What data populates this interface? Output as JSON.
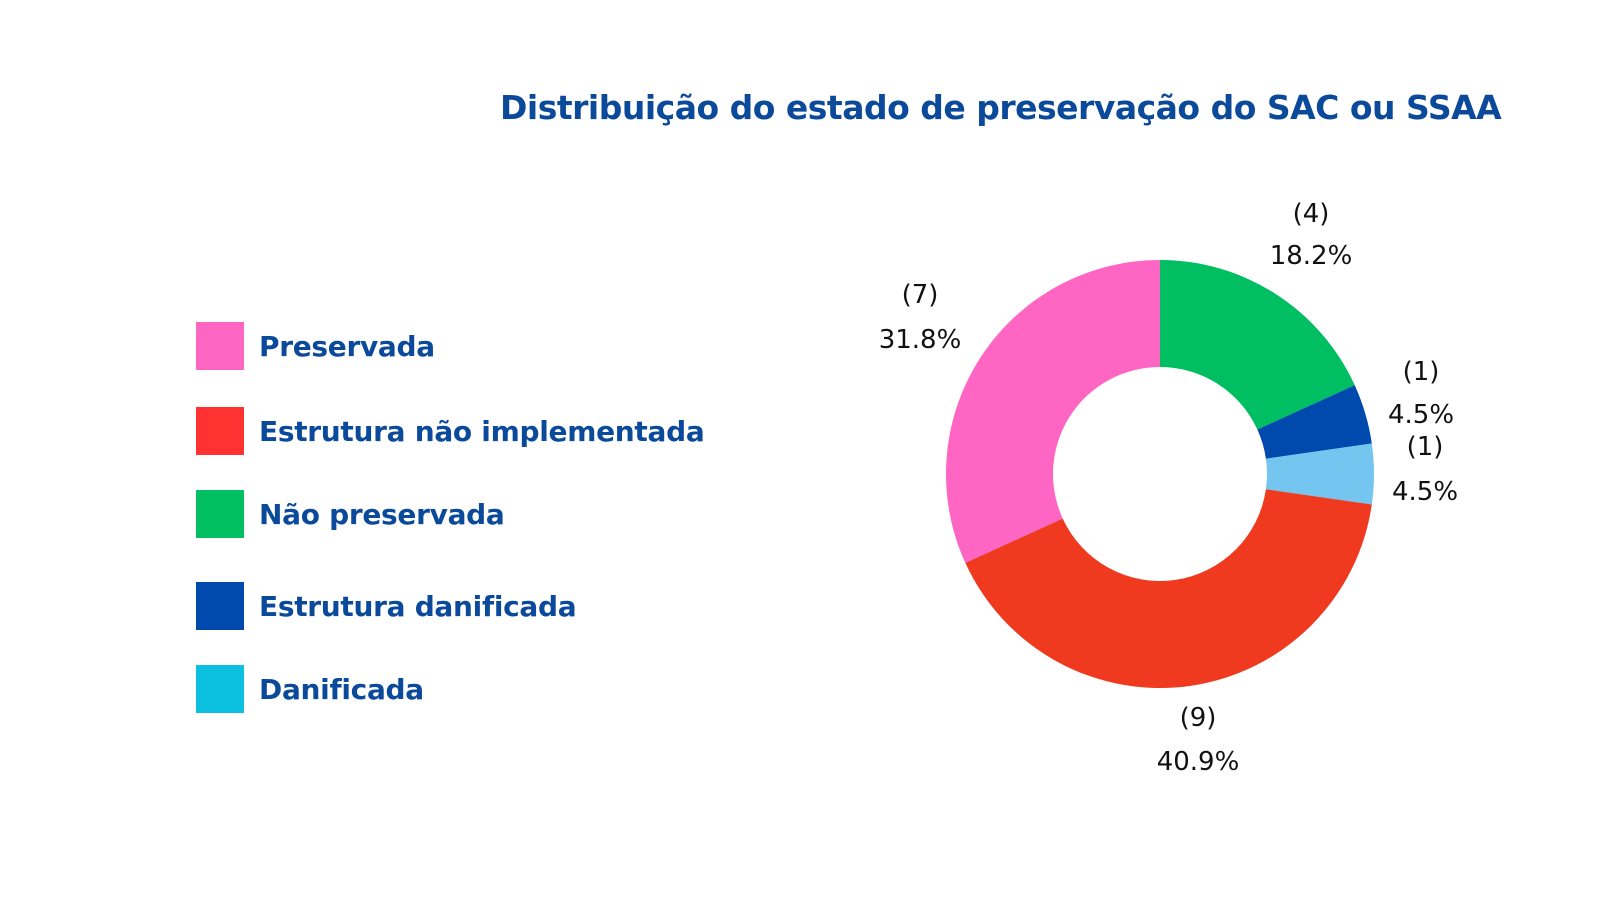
{
  "colors": {
    "title": "#0b4a9b",
    "legend_text": "#0b4a9b",
    "label_text": "#111111"
  },
  "chart_data": {
    "type": "pie",
    "variant": "donut",
    "title": "Distribuição do estado de preservação do SAC ou SSAA",
    "legend": [
      {
        "label": "Preservada",
        "color": "#ff66c4"
      },
      {
        "label": "Estrutura não implementada",
        "color": "#ff3131"
      },
      {
        "label": "Não preservada",
        "color": "#00bf63"
      },
      {
        "label": "Estrutura danificada",
        "color": "#004aad"
      },
      {
        "label": "Danificada",
        "color": "#0cc0df"
      }
    ],
    "slices": [
      {
        "value": 4,
        "percent": "18.2%",
        "count_label": "(4)",
        "color": "#00bf63"
      },
      {
        "value": 1,
        "percent": "4.5%",
        "count_label": "(1)",
        "color": "#004aad"
      },
      {
        "value": 1,
        "percent": "4.5%",
        "count_label": "(1)",
        "color": "#74c5ef"
      },
      {
        "value": 9,
        "percent": "40.9%",
        "count_label": "(9)",
        "color": "#f03a1f"
      },
      {
        "value": 7,
        "percent": "31.8%",
        "count_label": "(7)",
        "color": "#ff66c4"
      }
    ]
  }
}
